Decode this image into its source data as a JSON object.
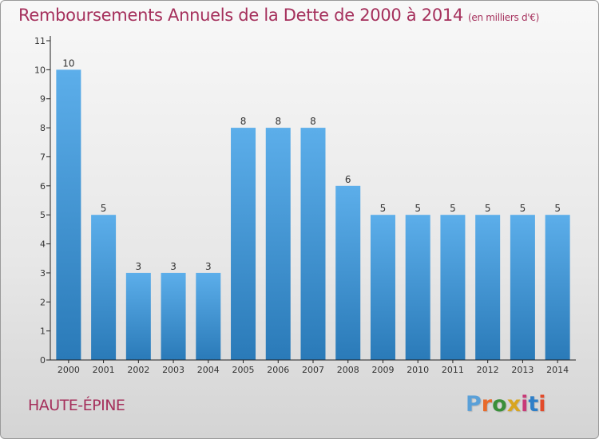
{
  "header": {
    "title": "Remboursements Annuels de la Dette de 2000 à 2014",
    "subtitle": "(en milliers d'€)"
  },
  "footer": {
    "commune": "HAUTE-ÉPINE",
    "logo_text": "Proxiti",
    "logo_colors": [
      "#5aa0d8",
      "#e86a2a",
      "#3a8f3a",
      "#d8a520",
      "#c83a78",
      "#2f7fc8",
      "#e24b2b"
    ]
  },
  "colors": {
    "bar_light": "#5caeea",
    "bar_dark": "#2a7ab8",
    "title": "#a5305c",
    "axis": "#222222"
  },
  "chart_data": {
    "type": "bar",
    "title": "Remboursements Annuels de la Dette de 2000 à 2014",
    "xlabel": "",
    "ylabel": "",
    "categories": [
      "2000",
      "2001",
      "2002",
      "2003",
      "2004",
      "2005",
      "2006",
      "2007",
      "2008",
      "2009",
      "2010",
      "2011",
      "2012",
      "2013",
      "2014"
    ],
    "values": [
      10,
      5,
      3,
      3,
      3,
      8,
      8,
      8,
      6,
      5,
      5,
      5,
      5,
      5,
      5
    ],
    "ylim": [
      0,
      11
    ],
    "yticks": [
      0,
      1,
      2,
      3,
      4,
      5,
      6,
      7,
      8,
      9,
      10,
      11
    ],
    "grid": false,
    "data_labels": true
  }
}
